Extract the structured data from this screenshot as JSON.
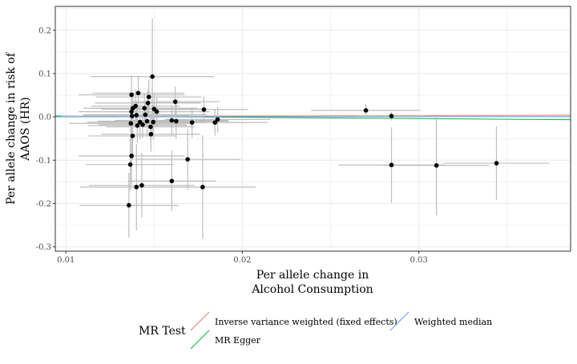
{
  "chart_data": {
    "type": "scatter",
    "title": "",
    "xlabel_lines": [
      "Per allele change in",
      "Alcohol Consumption"
    ],
    "ylabel_lines": [
      "Per allele change in risk of",
      "AAOS (HR)"
    ],
    "xlim": [
      0.0094,
      0.0386
    ],
    "ylim": [
      -0.31,
      0.255
    ],
    "x_ticks": [
      0.01,
      0.02,
      0.03
    ],
    "x_tick_labels": [
      "0.01",
      "0.02",
      "0.03"
    ],
    "y_ticks": [
      -0.3,
      -0.2,
      -0.1,
      0.0,
      0.1,
      0.2
    ],
    "y_tick_labels": [
      "-0.3",
      "-0.2",
      "-0.1",
      "0.0",
      "0.1",
      "0.2"
    ],
    "grid": true,
    "points": [
      {
        "x": 0.01357,
        "y": -0.204,
        "xerr": 0.0028,
        "yerr": 0.075
      },
      {
        "x": 0.01365,
        "y": -0.11,
        "xerr": 0.0025,
        "yerr": 0.06
      },
      {
        "x": 0.01372,
        "y": -0.09,
        "xerr": 0.003,
        "yerr": 0.065
      },
      {
        "x": 0.01378,
        "y": -0.044,
        "xerr": 0.0025,
        "yerr": 0.055
      },
      {
        "x": 0.01368,
        "y": -0.015,
        "xerr": 0.0035,
        "yerr": 0.04
      },
      {
        "x": 0.01375,
        "y": 0.002,
        "xerr": 0.004,
        "yerr": 0.03
      },
      {
        "x": 0.01372,
        "y": 0.012,
        "xerr": 0.003,
        "yerr": 0.035
      },
      {
        "x": 0.0138,
        "y": 0.02,
        "xerr": 0.0028,
        "yerr": 0.03
      },
      {
        "x": 0.01372,
        "y": 0.051,
        "xerr": 0.003,
        "yerr": 0.045
      },
      {
        "x": 0.01395,
        "y": 0.025,
        "xerr": 0.0025,
        "yerr": 0.04
      },
      {
        "x": 0.014,
        "y": 0.004,
        "xerr": 0.003,
        "yerr": 0.03
      },
      {
        "x": 0.01405,
        "y": -0.02,
        "xerr": 0.0028,
        "yerr": 0.04
      },
      {
        "x": 0.0141,
        "y": 0.055,
        "xerr": 0.0026,
        "yerr": 0.04
      },
      {
        "x": 0.014,
        "y": -0.162,
        "xerr": 0.0032,
        "yerr": 0.1
      },
      {
        "x": 0.0143,
        "y": -0.158,
        "xerr": 0.003,
        "yerr": 0.075
      },
      {
        "x": 0.0142,
        "y": -0.012,
        "xerr": 0.003,
        "yerr": 0.04
      },
      {
        "x": 0.01435,
        "y": -0.018,
        "xerr": 0.0025,
        "yerr": 0.03
      },
      {
        "x": 0.01445,
        "y": 0.02,
        "xerr": 0.003,
        "yerr": 0.035
      },
      {
        "x": 0.0145,
        "y": 0.005,
        "xerr": 0.0035,
        "yerr": 0.03
      },
      {
        "x": 0.0146,
        "y": -0.01,
        "xerr": 0.0028,
        "yerr": 0.035
      },
      {
        "x": 0.01465,
        "y": 0.032,
        "xerr": 0.003,
        "yerr": 0.03
      },
      {
        "x": 0.0147,
        "y": 0.046,
        "xerr": 0.003,
        "yerr": 0.04
      },
      {
        "x": 0.0148,
        "y": -0.023,
        "xerr": 0.0025,
        "yerr": 0.035
      },
      {
        "x": 0.01482,
        "y": -0.04,
        "xerr": 0.0028,
        "yerr": 0.04
      },
      {
        "x": 0.0149,
        "y": 0.093,
        "xerr": 0.0035,
        "yerr": 0.135
      },
      {
        "x": 0.01495,
        "y": -0.012,
        "xerr": 0.003,
        "yerr": 0.04
      },
      {
        "x": 0.015,
        "y": 0.018,
        "xerr": 0.003,
        "yerr": 0.035
      },
      {
        "x": 0.01515,
        "y": 0.012,
        "xerr": 0.003,
        "yerr": 0.035
      },
      {
        "x": 0.016,
        "y": -0.008,
        "xerr": 0.0032,
        "yerr": 0.035
      },
      {
        "x": 0.016,
        "y": -0.148,
        "xerr": 0.0025,
        "yerr": 0.07
      },
      {
        "x": 0.0162,
        "y": 0.035,
        "xerr": 0.0025,
        "yerr": 0.035
      },
      {
        "x": 0.01625,
        "y": -0.01,
        "xerr": 0.003,
        "yerr": 0.04
      },
      {
        "x": 0.0169,
        "y": -0.098,
        "xerr": 0.003,
        "yerr": 0.07
      },
      {
        "x": 0.01715,
        "y": -0.013,
        "xerr": 0.003,
        "yerr": 0.035
      },
      {
        "x": 0.01775,
        "y": -0.162,
        "xerr": 0.003,
        "yerr": 0.12
      },
      {
        "x": 0.01782,
        "y": 0.017,
        "xerr": 0.0025,
        "yerr": 0.03
      },
      {
        "x": 0.01845,
        "y": -0.013,
        "xerr": 0.003,
        "yerr": 0.03
      },
      {
        "x": 0.0186,
        "y": -0.006,
        "xerr": 0.003,
        "yerr": 0.03
      },
      {
        "x": 0.027,
        "y": 0.015,
        "xerr": 0.0031,
        "yerr": 0.015
      },
      {
        "x": 0.02845,
        "y": 0.002,
        "xerr": 0.002,
        "yerr": 0.01
      },
      {
        "x": 0.02845,
        "y": -0.111,
        "xerr": 0.003,
        "yerr": 0.087
      },
      {
        "x": 0.031,
        "y": -0.112,
        "xerr": 0.003,
        "yerr": 0.115
      },
      {
        "x": 0.0344,
        "y": -0.107,
        "xerr": 0.003,
        "yerr": 0.085
      }
    ],
    "lines": [
      {
        "name": "Inverse variance weighted (fixed effects)",
        "color": "#F8766D",
        "intercept": 0,
        "slope": 0.1
      },
      {
        "name": "MR Egger",
        "color": "#00BA38",
        "intercept": 0.005,
        "slope": -0.3
      },
      {
        "name": "Weighted median",
        "color": "#619CFF",
        "intercept": 0,
        "slope": 0.02
      }
    ],
    "legend": {
      "title": "MR Test",
      "position": "bottom",
      "entries": [
        {
          "label": "Inverse variance weighted (fixed effects)",
          "color": "#F8766D"
        },
        {
          "label": "MR Egger",
          "color": "#00BA38"
        },
        {
          "label": "Weighted median",
          "color": "#619CFF"
        }
      ]
    },
    "colors": {
      "point": "#000000",
      "errorbar": "#BEBEBE",
      "grid": "#EBEBEB",
      "panel_border": "#333333"
    }
  }
}
